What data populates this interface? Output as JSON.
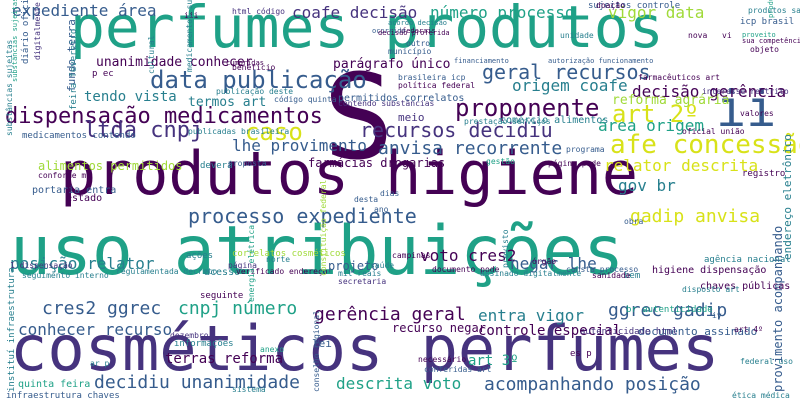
{
  "palette": {
    "dark_purple": "#440154",
    "indigo": "#46337e",
    "blue": "#365c8d",
    "teal": "#277f8e",
    "green": "#1fa187",
    "lime": "#4ac16d",
    "yellow_green": "#a0da39",
    "yellow": "#d8e219"
  },
  "words": [
    {
      "text": "perfumes produtos"
    },
    {
      "text": "uso atribuições"
    },
    {
      "text": "cosméticos perfumes"
    },
    {
      "text": "produtos higiene"
    },
    {
      "text": "S"
    },
    {
      "text": "ii"
    },
    {
      "text": "dispensação medicamentos"
    },
    {
      "text": "data publicação"
    },
    {
      "text": "geral recursos"
    },
    {
      "text": "decisão gerência"
    },
    {
      "text": "afe concessão"
    },
    {
      "text": "número processo"
    },
    {
      "text": "coafe decisão"
    },
    {
      "text": "vigor data"
    },
    {
      "text": "expediente área"
    },
    {
      "text": "proponente"
    },
    {
      "text": "origem coafe"
    },
    {
      "text": "art 2º"
    },
    {
      "text": "recursos decidiu"
    },
    {
      "text": "anvisa recorrente"
    },
    {
      "text": "ltda cnpj"
    },
    {
      "text": "caso"
    },
    {
      "text": "lhe provimento"
    },
    {
      "text": "área origem"
    },
    {
      "text": "relator descrita"
    },
    {
      "text": "processo expediente"
    },
    {
      "text": "gadip anvisa"
    },
    {
      "text": "posição relator"
    },
    {
      "text": "voto cres2"
    },
    {
      "text": "negar lhe"
    },
    {
      "text": "gov br"
    },
    {
      "text": "cres2 ggrec"
    },
    {
      "text": "cnpj número"
    },
    {
      "text": "ggrec gadip"
    },
    {
      "text": "gerência geral"
    },
    {
      "text": "entra vigor"
    },
    {
      "text": "conhecer recurso"
    },
    {
      "text": "terras reforma"
    },
    {
      "text": "art 3º"
    },
    {
      "text": "decidiu unanimidade"
    },
    {
      "text": "descrita voto"
    },
    {
      "text": "acompanhando posição"
    },
    {
      "text": "reforma agrária"
    },
    {
      "text": "tendo vista"
    },
    {
      "text": "termos art"
    },
    {
      "text": "unanimidade conhecer"
    },
    {
      "text": "parágrafo único"
    },
    {
      "text": "alimentos permitidos"
    },
    {
      "text": "farmácias drogarias"
    },
    {
      "text": "provimento acompanhando"
    },
    {
      "text": "endereço eletrônico"
    },
    {
      "text": "meio"
    },
    {
      "text": "comércio alimentos"
    },
    {
      "text": "controle especial"
    },
    {
      "text": "recurso negar"
    },
    {
      "text": "documento assinado"
    },
    {
      "text": "fundo terra"
    },
    {
      "text": "feira fevereiro"
    },
    {
      "text": "quinta feira"
    },
    {
      "text": "infraestrutura chaves"
    },
    {
      "text": "projeto"
    },
    {
      "text": "higiene dispensação"
    },
    {
      "text": "chaves públicas"
    },
    {
      "text": "agência nacional"
    },
    {
      "text": "sujeitos controle"
    },
    {
      "text": "medicamentos contendo"
    },
    {
      "text": "icp brasil"
    },
    {
      "text": "produtos saúde"
    },
    {
      "text": "sistema"
    },
    {
      "text": "deverá"
    },
    {
      "text": "proposta"
    },
    {
      "text": "autenticidade html"
    },
    {
      "text": "br autenticidade"
    },
    {
      "text": "conselho regional"
    },
    {
      "text": "diário oficial"
    },
    {
      "text": "instituí infraestrutura"
    },
    {
      "text": "lei"
    },
    {
      "text": "art 4º"
    },
    {
      "text": "federal uso"
    },
    {
      "text": "ética médica"
    },
    {
      "text": "conforme mp"
    },
    {
      "text": "portaria entra"
    },
    {
      "text": "estado"
    },
    {
      "text": "html código"
    },
    {
      "text": "código quinta"
    },
    {
      "text": "substâncias sujeitas"
    },
    {
      "text": "registro"
    },
    {
      "text": "oficial união"
    },
    {
      "text": "valores"
    },
    {
      "text": "interesse restrito"
    },
    {
      "text": "farmacêuticos art"
    },
    {
      "text": "brasileira icp"
    },
    {
      "text": "política federal"
    },
    {
      "text": "publicação deste"
    },
    {
      "text": "benefício"
    },
    {
      "text": "objeto"
    },
    {
      "text": "p ec"
    },
    {
      "text": "cultural"
    },
    {
      "text": "acesso"
    },
    {
      "text": "seguinte"
    },
    {
      "text": "dezembro"
    },
    {
      "text": "informações"
    },
    {
      "text": "ações"
    },
    {
      "text": "es p"
    },
    {
      "text": "bem"
    },
    {
      "text": "iv"
    },
    {
      "text": "iii"
    },
    {
      "text": "vi"
    },
    {
      "text": "ar p"
    },
    {
      "text": "obra"
    },
    {
      "text": "outro"
    },
    {
      "text": "município"
    },
    {
      "text": "financiamento"
    },
    {
      "text": "autorização funcionamento"
    },
    {
      "text": "permitidos correlatos"
    },
    {
      "text": "contendo substâncias"
    },
    {
      "text": "prestação serviços"
    },
    {
      "text": "documento pode"
    },
    {
      "text": "página pode"
    },
    {
      "text": "verificado endereço"
    },
    {
      "text": "assinado digitalmente"
    },
    {
      "text": "campinas"
    },
    {
      "text": "secretaria"
    },
    {
      "text": "mil reais"
    },
    {
      "text": "saúde"
    },
    {
      "text": "gestão"
    },
    {
      "text": "correlatos cosméticos"
    },
    {
      "text": "constituição federal"
    },
    {
      "text": "programa"
    },
    {
      "text": "anexo"
    },
    {
      "text": "página"
    },
    {
      "text": "norte"
    },
    {
      "text": "regulamentada decreto"
    },
    {
      "text": "1 dispensação"
    },
    {
      "text": "seguimento interno"
    },
    {
      "text": "digitalmente conforme"
    },
    {
      "text": "necessário"
    },
    {
      "text": "conferidas art"
    },
    {
      "text": "previsto"
    },
    {
      "text": "consta processo"
    },
    {
      "text": "doação"
    },
    {
      "text": "sanidade"
    },
    {
      "text": "nova"
    },
    {
      "text": "produtos cuja"
    },
    {
      "text": "proveito"
    },
    {
      "text": "cumpridas"
    },
    {
      "text": "unidade"
    },
    {
      "text": "federais"
    },
    {
      "text": "ocorrido"
    },
    {
      "text": "sua competência"
    },
    {
      "text": "medicamentos sujeitos"
    },
    {
      "text": "substâncias sujeitas"
    },
    {
      "text": "acordo decisão"
    },
    {
      "text": "decisão proferida"
    },
    {
      "text": "publicadas brasileira"
    },
    {
      "text": "desta"
    },
    {
      "text": "ano"
    },
    {
      "text": "dias"
    },
    {
      "text": "energia elétrica"
    },
    {
      "text": "órgão"
    },
    {
      "text": "disposto art"
    }
  ]
}
